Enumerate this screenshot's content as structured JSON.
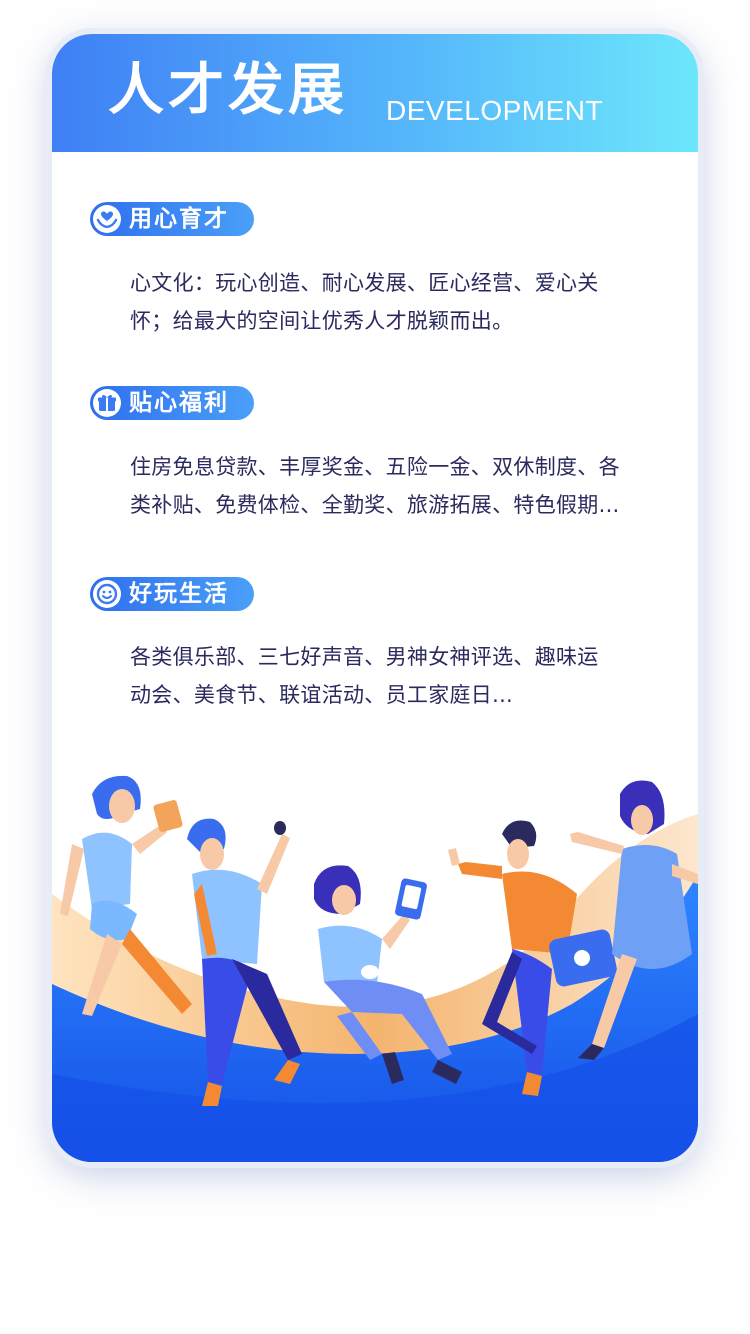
{
  "header": {
    "title": "人才发展",
    "subtitle": "DEVELOPMENT"
  },
  "sections": [
    {
      "badge": "用心育才",
      "icon": "heart-hand-icon",
      "lines": [
        "心文化：玩心创造、耐心发展、匠心经营、爱心关",
        "怀；给最大的空间让优秀人才脱颖而出。"
      ]
    },
    {
      "badge": "贴心福利",
      "icon": "gift-icon",
      "lines": [
        "住房免息贷款、丰厚奖金、五险一金、双休制度、各",
        "类补贴、免费体检、全勤奖、旅游拓展、特色假期..."
      ]
    },
    {
      "badge": "好玩生活",
      "icon": "smile-icon",
      "lines": [
        "各类俱乐部、三七好声音、男神女神评选、趣味运",
        "动会、美食节、联谊活动、员工家庭日..."
      ]
    }
  ],
  "colors": {
    "accent_blue": "#2f6fef",
    "header_end": "#6de7fb",
    "text": "#2b2a5e",
    "wave_orange": "#f6b36a"
  }
}
